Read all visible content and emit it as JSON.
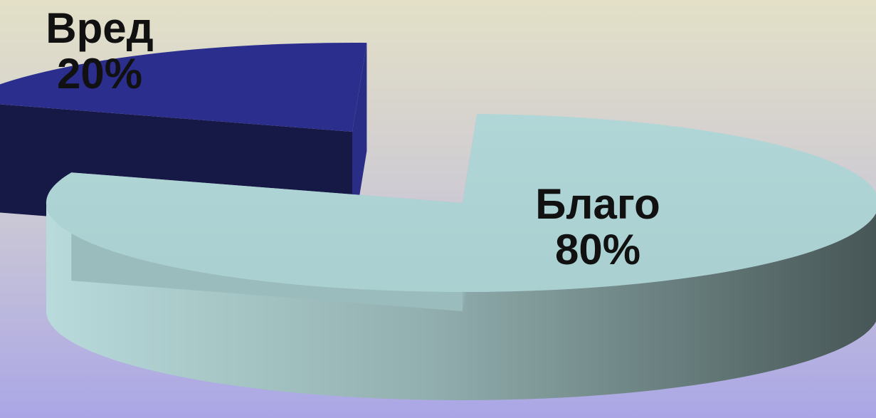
{
  "chart_data": {
    "type": "pie",
    "title": "",
    "categories": [
      "Вред",
      "Благо"
    ],
    "values": [
      20,
      80
    ],
    "value_labels": [
      "20%",
      "80%"
    ],
    "colors": [
      "#2c2e8e",
      "#b3d8d9"
    ],
    "exploded": "Вред",
    "three_d": true,
    "legend": "none"
  }
}
